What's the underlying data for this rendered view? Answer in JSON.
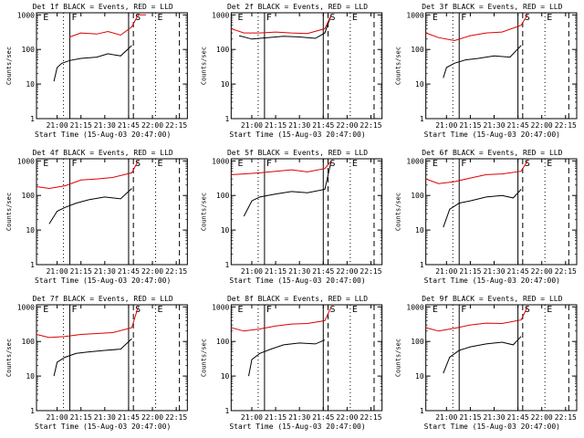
{
  "common": {
    "ylabel": "Counts/sec",
    "xlabel": "Start Time (15-Aug-03 20:47:00)",
    "x_ticks": [
      "21:00",
      "21:15",
      "21:30",
      "21:45",
      "22:00",
      "22:15"
    ],
    "y_ticks": [
      "1",
      "10",
      "100",
      "1000"
    ],
    "markers": [
      "E",
      "F",
      "S",
      "E"
    ],
    "colors": {
      "events": "#000000",
      "lld": "#dd0000"
    }
  },
  "chart_data": [
    {
      "type": "line",
      "title": "Det 1f BLACK = Events, RED = LLD",
      "yscale": "log",
      "ylim": [
        1,
        1000
      ],
      "xlim": [
        "20:47",
        "22:22"
      ],
      "series": [
        {
          "name": "Events",
          "color": "#000000",
          "x": [
            "20:58",
            "21:00",
            "21:03",
            "21:08",
            "21:15",
            "21:25",
            "21:32",
            "21:40",
            "21:47"
          ],
          "values": [
            12,
            30,
            40,
            48,
            55,
            60,
            75,
            65,
            130
          ]
        },
        {
          "name": "LLD",
          "color": "#dd0000",
          "x": [
            "21:08",
            "21:15",
            "21:25",
            "21:32",
            "21:40",
            "21:47",
            "21:51",
            "21:56"
          ],
          "values": [
            230,
            300,
            280,
            330,
            260,
            450,
            1000,
            1000
          ]
        }
      ]
    },
    {
      "type": "line",
      "title": "Det 2f BLACK = Events, RED = LLD",
      "yscale": "log",
      "ylim": [
        1,
        1000
      ],
      "xlim": [
        "20:47",
        "22:22"
      ],
      "series": [
        {
          "name": "Events",
          "color": "#000000",
          "x": [
            "20:52",
            "21:00",
            "21:10",
            "21:20",
            "21:30",
            "21:40",
            "21:46",
            "21:50"
          ],
          "values": [
            250,
            200,
            220,
            240,
            230,
            210,
            300,
            1000
          ]
        },
        {
          "name": "LLD",
          "color": "#dd0000",
          "x": [
            "20:47",
            "20:55",
            "21:05",
            "21:15",
            "21:25",
            "21:35",
            "21:46",
            "21:50"
          ],
          "values": [
            400,
            300,
            300,
            320,
            300,
            290,
            400,
            1000
          ]
        }
      ]
    },
    {
      "type": "line",
      "title": "Det 3f BLACK = Events, RED = LLD",
      "yscale": "log",
      "ylim": [
        1,
        1000
      ],
      "xlim": [
        "20:47",
        "22:22"
      ],
      "series": [
        {
          "name": "Events",
          "color": "#000000",
          "x": [
            "20:58",
            "21:00",
            "21:05",
            "21:12",
            "21:20",
            "21:30",
            "21:40",
            "21:47"
          ],
          "values": [
            15,
            30,
            40,
            50,
            55,
            65,
            60,
            130
          ]
        },
        {
          "name": "LLD",
          "color": "#dd0000",
          "x": [
            "20:47",
            "20:55",
            "21:05",
            "21:15",
            "21:25",
            "21:35",
            "21:47",
            "21:51"
          ],
          "values": [
            300,
            220,
            180,
            250,
            300,
            320,
            500,
            1000
          ]
        }
      ]
    },
    {
      "type": "line",
      "title": "Det 4f BLACK = Events, RED = LLD",
      "yscale": "log",
      "ylim": [
        1,
        1000
      ],
      "xlim": [
        "20:47",
        "22:22"
      ],
      "series": [
        {
          "name": "Events",
          "color": "#000000",
          "x": [
            "20:55",
            "21:00",
            "21:05",
            "21:12",
            "21:20",
            "21:30",
            "21:40",
            "21:47"
          ],
          "values": [
            15,
            35,
            45,
            60,
            75,
            90,
            80,
            160
          ]
        },
        {
          "name": "LLD",
          "color": "#dd0000",
          "x": [
            "20:47",
            "20:55",
            "21:05",
            "21:15",
            "21:25",
            "21:35",
            "21:47",
            "21:51"
          ],
          "values": [
            180,
            160,
            190,
            280,
            300,
            330,
            450,
            1000
          ]
        }
      ]
    },
    {
      "type": "line",
      "title": "Det 5f BLACK = Events, RED = LLD",
      "yscale": "log",
      "ylim": [
        1,
        1000
      ],
      "xlim": [
        "20:47",
        "22:22"
      ],
      "series": [
        {
          "name": "Events",
          "color": "#000000",
          "x": [
            "20:55",
            "21:00",
            "21:05",
            "21:15",
            "21:25",
            "21:35",
            "21:46",
            "21:50"
          ],
          "values": [
            25,
            70,
            90,
            110,
            130,
            120,
            150,
            1000
          ]
        },
        {
          "name": "LLD",
          "color": "#dd0000",
          "x": [
            "20:47",
            "20:55",
            "21:05",
            "21:15",
            "21:25",
            "21:35",
            "21:46",
            "21:50"
          ],
          "values": [
            400,
            420,
            450,
            500,
            550,
            480,
            600,
            1000
          ]
        }
      ]
    },
    {
      "type": "line",
      "title": "Det 6f BLACK = Events, RED = LLD",
      "yscale": "log",
      "ylim": [
        1,
        1000
      ],
      "xlim": [
        "20:47",
        "22:22"
      ],
      "series": [
        {
          "name": "Events",
          "color": "#000000",
          "x": [
            "20:58",
            "21:02",
            "21:08",
            "21:15",
            "21:25",
            "21:35",
            "21:42",
            "21:47"
          ],
          "values": [
            12,
            40,
            60,
            70,
            90,
            100,
            85,
            150
          ]
        },
        {
          "name": "LLD",
          "color": "#dd0000",
          "x": [
            "20:47",
            "20:55",
            "21:05",
            "21:15",
            "21:25",
            "21:35",
            "21:47",
            "21:51"
          ],
          "values": [
            300,
            220,
            250,
            320,
            400,
            420,
            500,
            1000
          ]
        }
      ]
    },
    {
      "type": "line",
      "title": "Det 7f BLACK = Events, RED = LLD",
      "yscale": "log",
      "ylim": [
        1,
        1000
      ],
      "xlim": [
        "20:47",
        "22:22"
      ],
      "series": [
        {
          "name": "Events",
          "color": "#000000",
          "x": [
            "20:58",
            "21:00",
            "21:05",
            "21:12",
            "21:20",
            "21:30",
            "21:40",
            "21:47"
          ],
          "values": [
            10,
            25,
            35,
            45,
            50,
            55,
            60,
            120
          ]
        },
        {
          "name": "LLD",
          "color": "#dd0000",
          "x": [
            "20:47",
            "20:55",
            "21:05",
            "21:15",
            "21:25",
            "21:35",
            "21:47",
            "21:51"
          ],
          "values": [
            160,
            130,
            140,
            160,
            170,
            180,
            250,
            1000
          ]
        }
      ]
    },
    {
      "type": "line",
      "title": "Det 8f BLACK = Events, RED = LLD",
      "yscale": "log",
      "ylim": [
        1,
        1000
      ],
      "xlim": [
        "20:47",
        "22:22"
      ],
      "series": [
        {
          "name": "Events",
          "color": "#000000",
          "x": [
            "20:58",
            "21:00",
            "21:05",
            "21:12",
            "21:20",
            "21:30",
            "21:40",
            "21:46"
          ],
          "values": [
            10,
            30,
            45,
            60,
            80,
            90,
            85,
            110
          ]
        },
        {
          "name": "LLD",
          "color": "#dd0000",
          "x": [
            "20:47",
            "20:55",
            "21:05",
            "21:15",
            "21:25",
            "21:35",
            "21:46",
            "21:50"
          ],
          "values": [
            250,
            200,
            230,
            280,
            320,
            330,
            400,
            1000
          ]
        }
      ]
    },
    {
      "type": "line",
      "title": "Det 9f BLACK = Events, RED = LLD",
      "yscale": "log",
      "ylim": [
        1,
        1000
      ],
      "xlim": [
        "20:47",
        "22:22"
      ],
      "series": [
        {
          "name": "Events",
          "color": "#000000",
          "x": [
            "20:58",
            "21:02",
            "21:08",
            "21:15",
            "21:25",
            "21:35",
            "21:42",
            "21:47"
          ],
          "values": [
            12,
            35,
            55,
            70,
            85,
            95,
            80,
            140
          ]
        },
        {
          "name": "LLD",
          "color": "#dd0000",
          "x": [
            "20:47",
            "20:55",
            "21:05",
            "21:15",
            "21:25",
            "21:35",
            "21:47",
            "21:51"
          ],
          "values": [
            250,
            200,
            240,
            300,
            340,
            330,
            420,
            1000
          ]
        }
      ]
    }
  ]
}
